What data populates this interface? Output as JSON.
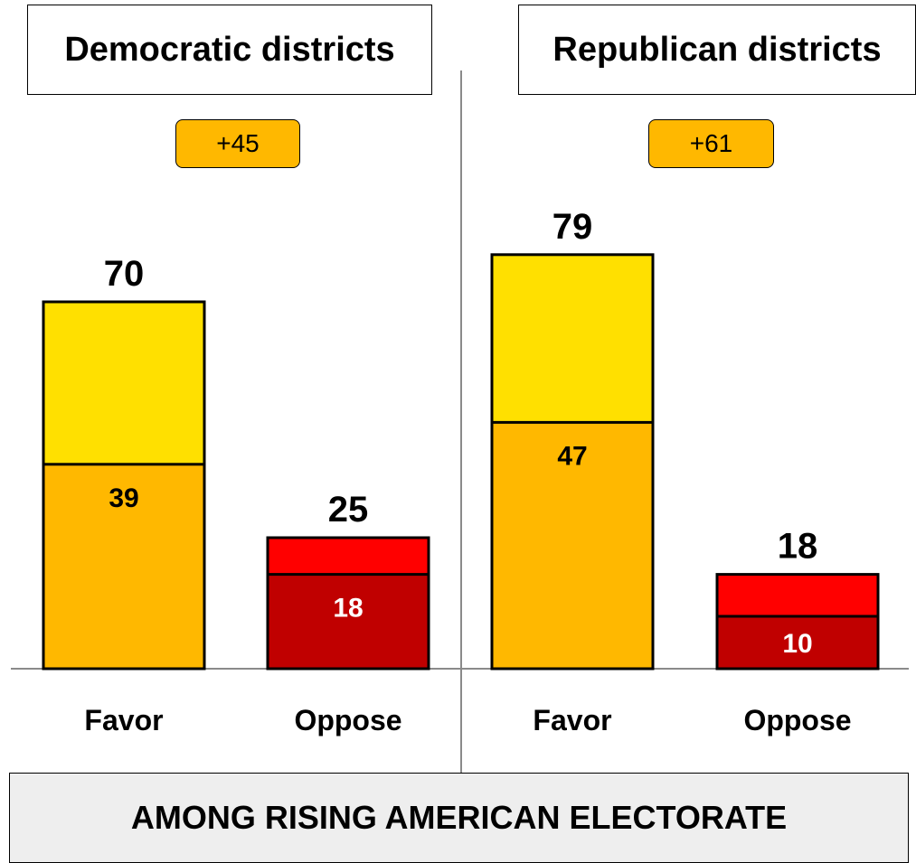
{
  "chart_data": [
    {
      "type": "bar",
      "title": "Democratic districts",
      "difference_label": "+45",
      "categories": [
        "Favor",
        "Oppose"
      ],
      "totals": [
        70,
        25
      ],
      "strong": [
        39,
        18
      ],
      "colors": {
        "favor_strong": "#FFB800",
        "favor_total": "#FFE000",
        "oppose_strong": "#C00000",
        "oppose_total": "#FF0000"
      }
    },
    {
      "type": "bar",
      "title": "Republican districts",
      "difference_label": "+61",
      "categories": [
        "Favor",
        "Oppose"
      ],
      "totals": [
        79,
        18
      ],
      "strong": [
        47,
        10
      ],
      "colors": {
        "favor_strong": "#FFB800",
        "favor_total": "#FFE000",
        "oppose_strong": "#C00000",
        "oppose_total": "#FF0000"
      }
    }
  ],
  "footer": {
    "text": "AMONG RISING AMERICAN ELECTORATE"
  }
}
